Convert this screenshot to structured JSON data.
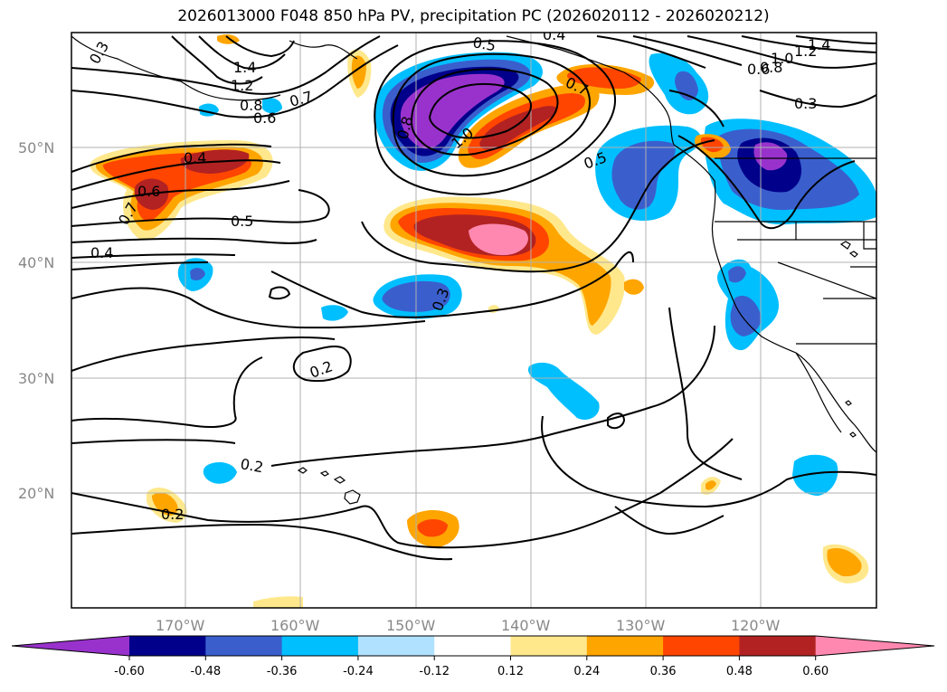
{
  "title": "2026013000 F048 850 hPa PV, precipitation PC (2026020112 - 2026020212)",
  "lat_labels": [
    "50°N",
    "40°N",
    "30°N",
    "20°N"
  ],
  "lon_labels": [
    "170°W",
    "160°W",
    "150°W",
    "140°W",
    "130°W",
    "120°W"
  ],
  "contour_labels": [
    "0.3",
    "1.4",
    "1.2",
    "0.8",
    "0.6",
    "0.7",
    "0.5",
    "0.4",
    "0.4",
    "0.6",
    "0.7",
    "0.5",
    "0.4",
    "0.8",
    "1.0",
    "0.7",
    "0.5",
    "1.4",
    "1.2",
    "1.0",
    "0.8",
    "0.6",
    "0.3",
    "0.3",
    "0.2",
    "0.2",
    "0.2"
  ],
  "colorbar": {
    "ticks": [
      "-0.60",
      "-0.48",
      "-0.36",
      "-0.24",
      "-0.12",
      "0.12",
      "0.24",
      "0.36",
      "0.48",
      "0.60"
    ],
    "colors": [
      "#9932cc",
      "#00008b",
      "#3a5fcd",
      "#00bfff",
      "#b0e2ff",
      "#ffffff",
      "#ffe88c",
      "#ffa500",
      "#ff4500",
      "#b22222",
      "#ff88b0"
    ]
  },
  "fill_colors": {
    "purple": "#9932cc",
    "navy": "#00008b",
    "blue": "#3a5fcd",
    "cyan": "#00bfff",
    "lightblue": "#b0e2ff",
    "yellow": "#ffe88c",
    "orange": "#ffa500",
    "redorange": "#ff4500",
    "darkred": "#b22222",
    "pink": "#ff88b0"
  }
}
